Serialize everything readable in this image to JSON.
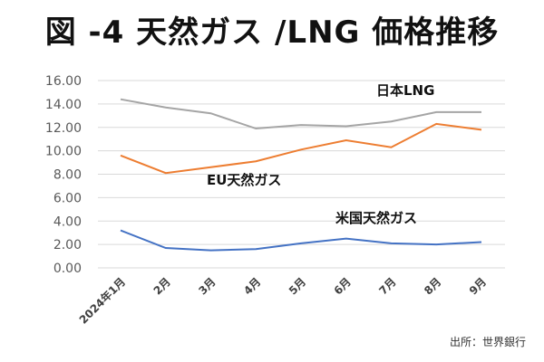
{
  "chart_data": {
    "type": "line",
    "title": "図 -4 天然ガス /LNG 価格推移",
    "categories": [
      "2024年1月",
      "2月",
      "3月",
      "4月",
      "5月",
      "6月",
      "7月",
      "8月",
      "9月"
    ],
    "ylim": [
      0,
      16
    ],
    "yticks": [
      "0.00",
      "2.00",
      "4.00",
      "6.00",
      "8.00",
      "10.00",
      "12.00",
      "14.00",
      "16.00"
    ],
    "grid": true,
    "series": [
      {
        "name": "日本LNG",
        "color": "#a5a5a5",
        "values": [
          14.4,
          13.7,
          13.2,
          11.9,
          12.2,
          12.1,
          12.5,
          13.3,
          13.3
        ]
      },
      {
        "name": "EU天然ガス",
        "color": "#ed7d31",
        "values": [
          9.6,
          8.1,
          8.6,
          9.1,
          10.1,
          10.9,
          10.3,
          12.3,
          11.8
        ]
      },
      {
        "name": "米国天然ガス",
        "color": "#4472c4",
        "values": [
          3.2,
          1.7,
          1.5,
          1.6,
          2.1,
          2.5,
          2.1,
          2.0,
          2.2
        ]
      }
    ],
    "source": "出所：世界銀行"
  }
}
